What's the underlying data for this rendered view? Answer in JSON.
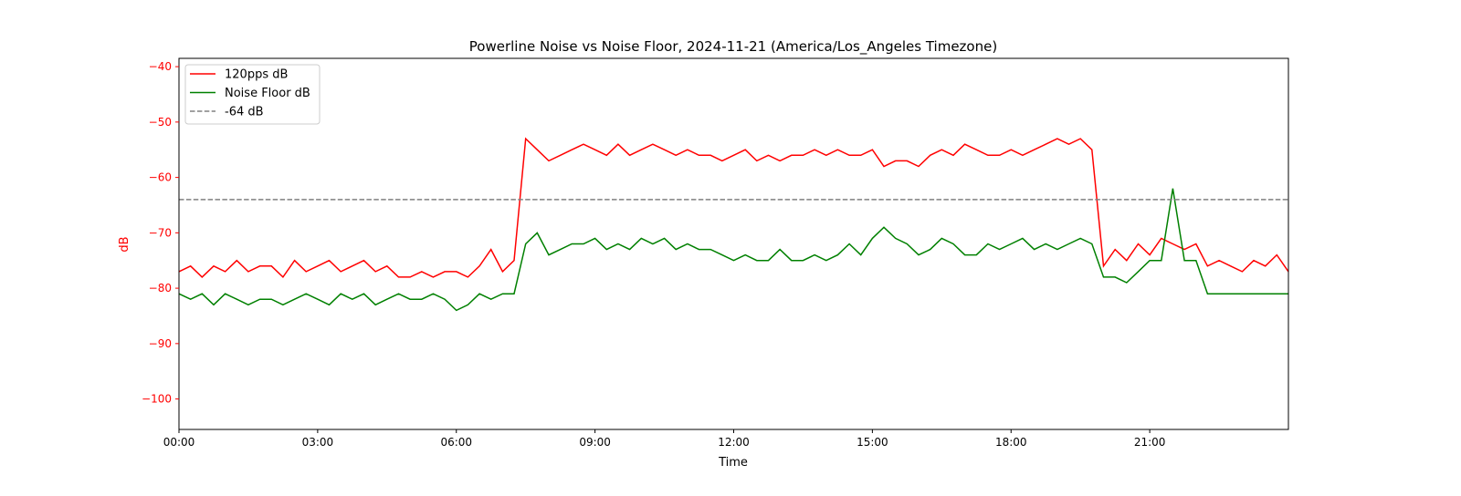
{
  "chart_data": {
    "type": "line",
    "title": "Powerline Noise vs Noise Floor, 2024-11-21 (America/Los_Angeles Timezone)",
    "xlabel": "Time",
    "ylabel": "dB",
    "xlim": [
      "00:00",
      "24:00"
    ],
    "ylim": [
      -105.5,
      -38.5
    ],
    "x_ticks": [
      "00:00",
      "03:00",
      "06:00",
      "09:00",
      "12:00",
      "15:00",
      "18:00",
      "21:00"
    ],
    "y_ticks": [
      -40,
      -50,
      -60,
      -70,
      -80,
      -90,
      -100
    ],
    "grid": false,
    "legend_position": "top-left",
    "ylabel_color": "#ff0000",
    "x": [
      "00:00",
      "00:15",
      "00:30",
      "00:45",
      "01:00",
      "01:15",
      "01:30",
      "01:45",
      "02:00",
      "02:15",
      "02:30",
      "02:45",
      "03:00",
      "03:15",
      "03:30",
      "03:45",
      "04:00",
      "04:15",
      "04:30",
      "04:45",
      "05:00",
      "05:15",
      "05:30",
      "05:45",
      "06:00",
      "06:15",
      "06:30",
      "06:45",
      "07:00",
      "07:15",
      "07:30",
      "07:45",
      "08:00",
      "08:15",
      "08:30",
      "08:45",
      "09:00",
      "09:15",
      "09:30",
      "09:45",
      "10:00",
      "10:15",
      "10:30",
      "10:45",
      "11:00",
      "11:15",
      "11:30",
      "11:45",
      "12:00",
      "12:15",
      "12:30",
      "12:45",
      "13:00",
      "13:15",
      "13:30",
      "13:45",
      "14:00",
      "14:15",
      "14:30",
      "14:45",
      "15:00",
      "15:15",
      "15:30",
      "15:45",
      "16:00",
      "16:15",
      "16:30",
      "16:45",
      "17:00",
      "17:15",
      "17:30",
      "17:45",
      "18:00",
      "18:15",
      "18:30",
      "18:45",
      "19:00",
      "19:15",
      "19:30",
      "19:45",
      "20:00",
      "20:15",
      "20:30",
      "20:45",
      "21:00",
      "21:15",
      "21:30",
      "21:45",
      "22:00",
      "22:15",
      "22:30",
      "22:45",
      "23:00",
      "23:15",
      "23:30",
      "23:45",
      "24:00"
    ],
    "series": [
      {
        "name": "120pps dB",
        "color": "#ff0000",
        "style": "solid",
        "values": [
          -77,
          -76,
          -78,
          -76,
          -77,
          -75,
          -77,
          -76,
          -76,
          -78,
          -75,
          -77,
          -76,
          -75,
          -77,
          -76,
          -75,
          -77,
          -76,
          -78,
          -78,
          -77,
          -78,
          -77,
          -77,
          -78,
          -76,
          -73,
          -77,
          -75,
          -53,
          -55,
          -57,
          -56,
          -55,
          -54,
          -55,
          -56,
          -54,
          -56,
          -55,
          -54,
          -55,
          -56,
          -55,
          -56,
          -56,
          -57,
          -56,
          -55,
          -57,
          -56,
          -57,
          -56,
          -56,
          -55,
          -56,
          -55,
          -56,
          -56,
          -55,
          -58,
          -57,
          -57,
          -58,
          -56,
          -55,
          -56,
          -54,
          -55,
          -56,
          -56,
          -55,
          -56,
          -55,
          -54,
          -53,
          -54,
          -53,
          -55,
          -76,
          -73,
          -75,
          -72,
          -74,
          -71,
          -72,
          -73,
          -72,
          -76,
          -75,
          -76,
          -77,
          -75,
          -76,
          -74,
          -77
        ]
      },
      {
        "name": "Noise Floor dB",
        "color": "#008000",
        "style": "solid",
        "values": [
          -81,
          -82,
          -81,
          -83,
          -81,
          -82,
          -83,
          -82,
          -82,
          -83,
          -82,
          -81,
          -82,
          -83,
          -81,
          -82,
          -81,
          -83,
          -82,
          -81,
          -82,
          -82,
          -81,
          -82,
          -84,
          -83,
          -81,
          -82,
          -81,
          -81,
          -72,
          -70,
          -74,
          -73,
          -72,
          -72,
          -71,
          -73,
          -72,
          -73,
          -71,
          -72,
          -71,
          -73,
          -72,
          -73,
          -73,
          -74,
          -75,
          -74,
          -75,
          -75,
          -73,
          -75,
          -75,
          -74,
          -75,
          -74,
          -72,
          -74,
          -71,
          -69,
          -71,
          -72,
          -74,
          -73,
          -71,
          -72,
          -74,
          -74,
          -72,
          -73,
          -72,
          -71,
          -73,
          -72,
          -73,
          -72,
          -71,
          -72,
          -78,
          -78,
          -79,
          -77,
          -75,
          -75,
          -62,
          -75,
          -75,
          -81,
          -81,
          -81,
          -81,
          -81,
          -81,
          -81,
          -81
        ]
      },
      {
        "name": "-64 dB",
        "color": "#808080",
        "style": "dashed",
        "constant": -64
      }
    ]
  }
}
